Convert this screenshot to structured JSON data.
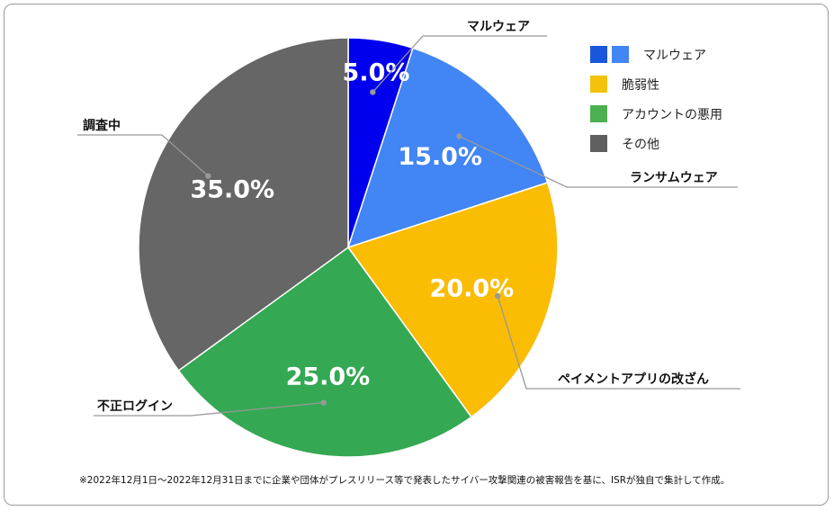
{
  "chart_data": {
    "type": "pie",
    "slices": [
      {
        "label": "マルウェア",
        "value": 5.0,
        "value_label": "5.0%",
        "color": "#0000ee"
      },
      {
        "label": "ランサムウェア",
        "value": 15.0,
        "value_label": "15.0%",
        "color": "#4285f4"
      },
      {
        "label": "ペイメントアプリの改ざん",
        "value": 20.0,
        "value_label": "20.0%",
        "color": "#fbbc04"
      },
      {
        "label": "不正ログイン",
        "value": 25.0,
        "value_label": "25.0%",
        "color": "#34a853"
      },
      {
        "label": "調査中",
        "value": 35.0,
        "value_label": "35.0%",
        "color": "#666666"
      }
    ],
    "legend": {
      "placement": "top-right",
      "items": [
        {
          "label": "マルウェア",
          "colors": [
            "#1a56db",
            "#4285f4"
          ]
        },
        {
          "label": "脆弱性",
          "colors": [
            "#f4c20d"
          ]
        },
        {
          "label": "アカウントの悪用",
          "colors": [
            "#4caf50"
          ]
        },
        {
          "label": "その他",
          "colors": [
            "#5f5f5f"
          ]
        }
      ]
    }
  },
  "footnote": "※2022年12月1日～2022年12月31日までに企業や団体がプレスリリース等で発表したサイバー攻撃関連の被害報告を基に、ISRが独自で集計して作成。"
}
